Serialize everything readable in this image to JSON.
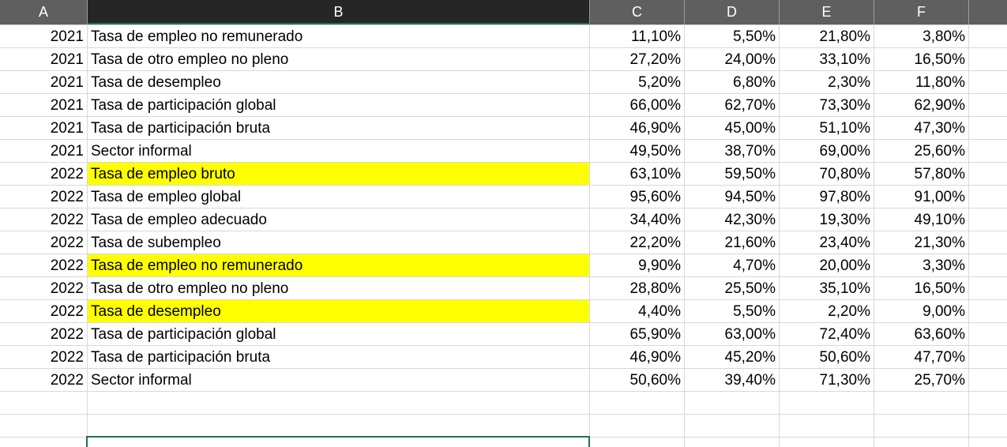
{
  "columns": {
    "a": "A",
    "b": "B",
    "c": "C",
    "d": "D",
    "e": "E",
    "f": "F",
    "g": ""
  },
  "rows": [
    {
      "a": "2021",
      "b": "Tasa de empleo no remunerado",
      "c": "11,10%",
      "d": "5,50%",
      "e": "21,80%",
      "f": "3,80%",
      "hl": false
    },
    {
      "a": "2021",
      "b": "Tasa de otro empleo no pleno",
      "c": "27,20%",
      "d": "24,00%",
      "e": "33,10%",
      "f": "16,50%",
      "hl": false
    },
    {
      "a": "2021",
      "b": "Tasa de desempleo",
      "c": "5,20%",
      "d": "6,80%",
      "e": "2,30%",
      "f": "11,80%",
      "hl": false
    },
    {
      "a": "2021",
      "b": "Tasa de participación global",
      "c": "66,00%",
      "d": "62,70%",
      "e": "73,30%",
      "f": "62,90%",
      "hl": false
    },
    {
      "a": "2021",
      "b": "Tasa de participación bruta",
      "c": "46,90%",
      "d": "45,00%",
      "e": "51,10%",
      "f": "47,30%",
      "hl": false
    },
    {
      "a": "2021",
      "b": "Sector informal",
      "c": "49,50%",
      "d": "38,70%",
      "e": "69,00%",
      "f": "25,60%",
      "hl": false
    },
    {
      "a": "2022",
      "b": "Tasa de empleo bruto",
      "c": "63,10%",
      "d": "59,50%",
      "e": "70,80%",
      "f": "57,80%",
      "hl": true
    },
    {
      "a": "2022",
      "b": "Tasa de empleo global",
      "c": "95,60%",
      "d": "94,50%",
      "e": "97,80%",
      "f": "91,00%",
      "hl": false
    },
    {
      "a": "2022",
      "b": "Tasa de empleo adecuado",
      "c": "34,40%",
      "d": "42,30%",
      "e": "19,30%",
      "f": "49,10%",
      "hl": false
    },
    {
      "a": "2022",
      "b": "Tasa de subempleo",
      "c": "22,20%",
      "d": "21,60%",
      "e": "23,40%",
      "f": "21,30%",
      "hl": false
    },
    {
      "a": "2022",
      "b": "Tasa de empleo no remunerado",
      "c": "9,90%",
      "d": "4,70%",
      "e": "20,00%",
      "f": "3,30%",
      "hl": true
    },
    {
      "a": "2022",
      "b": "Tasa de otro empleo no pleno",
      "c": "28,80%",
      "d": "25,50%",
      "e": "35,10%",
      "f": "16,50%",
      "hl": false
    },
    {
      "a": "2022",
      "b": "Tasa de desempleo",
      "c": "4,40%",
      "d": "5,50%",
      "e": "2,20%",
      "f": "9,00%",
      "hl": true
    },
    {
      "a": "2022",
      "b": "Tasa de participación global",
      "c": "65,90%",
      "d": "63,00%",
      "e": "72,40%",
      "f": "63,60%",
      "hl": false
    },
    {
      "a": "2022",
      "b": "Tasa de participación bruta",
      "c": "46,90%",
      "d": "45,20%",
      "e": "50,60%",
      "f": "47,70%",
      "hl": false
    },
    {
      "a": "2022",
      "b": "Sector informal",
      "c": "50,60%",
      "d": "39,40%",
      "e": "71,30%",
      "f": "25,70%",
      "hl": false
    },
    {
      "a": "",
      "b": "",
      "c": "",
      "d": "",
      "e": "",
      "f": "",
      "hl": false
    },
    {
      "a": "",
      "b": "",
      "c": "",
      "d": "",
      "e": "",
      "f": "",
      "hl": false
    },
    {
      "a": "",
      "b": "",
      "c": "",
      "d": "",
      "e": "",
      "f": "",
      "hl": false
    }
  ],
  "colors": {
    "highlight": "#ffff00",
    "header_bg": "#5f5f5f",
    "selected_header_bg": "#262626",
    "selection_border": "#217346"
  }
}
